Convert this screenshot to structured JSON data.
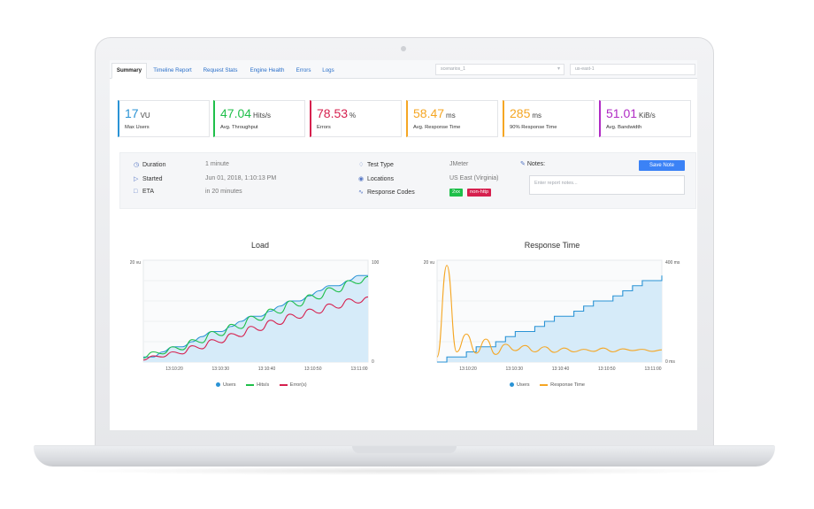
{
  "tabs": [
    {
      "label": "Summary",
      "active": true
    },
    {
      "label": "Timeline Report",
      "active": false
    },
    {
      "label": "Request Stats",
      "active": false
    },
    {
      "label": "Engine Health",
      "active": false
    },
    {
      "label": "Errors",
      "active": false
    },
    {
      "label": "Logs",
      "active": false
    }
  ],
  "filters": {
    "scenario": "scenarios_1",
    "location": "us-east-1"
  },
  "kpis": [
    {
      "value": "17",
      "unit": "VU",
      "label": "Max Users",
      "color": "#2a93d5"
    },
    {
      "value": "47.04",
      "unit": "Hits/s",
      "label": "Avg. Throughput",
      "color": "#1fbf4a"
    },
    {
      "value": "78.53",
      "unit": "%",
      "label": "Errors",
      "color": "#d6204e"
    },
    {
      "value": "58.47",
      "unit": "ms",
      "label": "Avg. Response Time",
      "color": "#f5a623"
    },
    {
      "value": "285",
      "unit": "ms",
      "label": "90% Response Time",
      "color": "#f5a623"
    },
    {
      "value": "51.01",
      "unit": "KiB/s",
      "label": "Avg. Bandwidth",
      "color": "#b02bc4"
    }
  ],
  "info": {
    "duration_label": "Duration",
    "duration_value": "1 minute",
    "started_label": "Started",
    "started_value": "Jun 01, 2018, 1:10:13 PM",
    "eta_label": "ETA",
    "eta_value": "in 20 minutes",
    "test_type_label": "Test Type",
    "test_type_value": "JMeter",
    "locations_label": "Locations",
    "locations_value": "US East (Virginia)",
    "response_codes_label": "Response Codes",
    "response_codes": [
      {
        "label": "2xx",
        "color": "#1fbf4a"
      },
      {
        "label": "non-http",
        "color": "#d6204e"
      }
    ],
    "notes_label": "Notes:",
    "save_note_label": "Save Note",
    "notes_placeholder": "Enter report notes..."
  },
  "icons": {
    "duration": "clock-icon",
    "started": "play-icon",
    "eta": "calendar-icon",
    "test_type": "tag-icon",
    "locations": "location-pin-icon",
    "response_codes": "pulse-icon",
    "notes": "pencil-icon"
  },
  "chart_data": [
    {
      "type": "line",
      "title": "Load",
      "y_left_label": "20 vu",
      "y_right_top": "100",
      "y_right_bottom": "0",
      "ylim_left": [
        0,
        20
      ],
      "ylim_right": [
        0,
        100
      ],
      "x_ticks": [
        "13:10:20",
        "13:10:30",
        "13:10:40",
        "13:10:50",
        "13:11:00"
      ],
      "series": [
        {
          "name": "Users",
          "color": "#2a93d5",
          "axis": "left",
          "fill": true,
          "values": [
            1,
            1,
            2,
            3,
            3,
            4,
            5,
            6,
            6,
            7,
            8,
            9,
            9,
            10,
            11,
            12,
            12,
            13,
            14,
            15,
            15,
            16,
            17,
            17
          ]
        },
        {
          "name": "Hits/s",
          "color": "#1fbf4a",
          "axis": "right",
          "values": [
            4,
            10,
            8,
            15,
            12,
            22,
            19,
            30,
            26,
            37,
            33,
            45,
            41,
            52,
            48,
            60,
            55,
            66,
            62,
            73,
            69,
            80,
            77,
            84
          ]
        },
        {
          "name": "Error(s)",
          "color": "#d6204e",
          "axis": "right",
          "values": [
            2,
            6,
            5,
            10,
            8,
            16,
            13,
            22,
            19,
            28,
            25,
            35,
            31,
            41,
            37,
            47,
            43,
            52,
            48,
            57,
            53,
            62,
            58,
            64
          ]
        }
      ],
      "legend": [
        "Users",
        "Hits/s",
        "Error(s)"
      ]
    },
    {
      "type": "line",
      "title": "Response Time",
      "y_left_label": "20 vu",
      "y_right_top": "400 ms",
      "y_right_bottom": "0 ms",
      "ylim_left": [
        0,
        20
      ],
      "ylim_right": [
        0,
        400
      ],
      "x_ticks": [
        "13:10:20",
        "13:10:30",
        "13:10:40",
        "13:10:50",
        "13:11:00"
      ],
      "series": [
        {
          "name": "Users",
          "color": "#2a93d5",
          "axis": "left",
          "fill": true,
          "step": true,
          "values": [
            0,
            1,
            1,
            2,
            3,
            3,
            4,
            5,
            6,
            6,
            7,
            8,
            9,
            9,
            10,
            11,
            12,
            12,
            13,
            14,
            15,
            16,
            16,
            17
          ]
        },
        {
          "name": "Response Time",
          "color": "#f5a623",
          "axis": "right",
          "values": [
            20,
            380,
            40,
            110,
            35,
            90,
            30,
            70,
            45,
            65,
            40,
            60,
            38,
            55,
            40,
            50,
            42,
            55,
            40,
            52,
            45,
            50,
            42,
            48
          ]
        }
      ],
      "legend": [
        "Users",
        "Response Time"
      ]
    }
  ]
}
